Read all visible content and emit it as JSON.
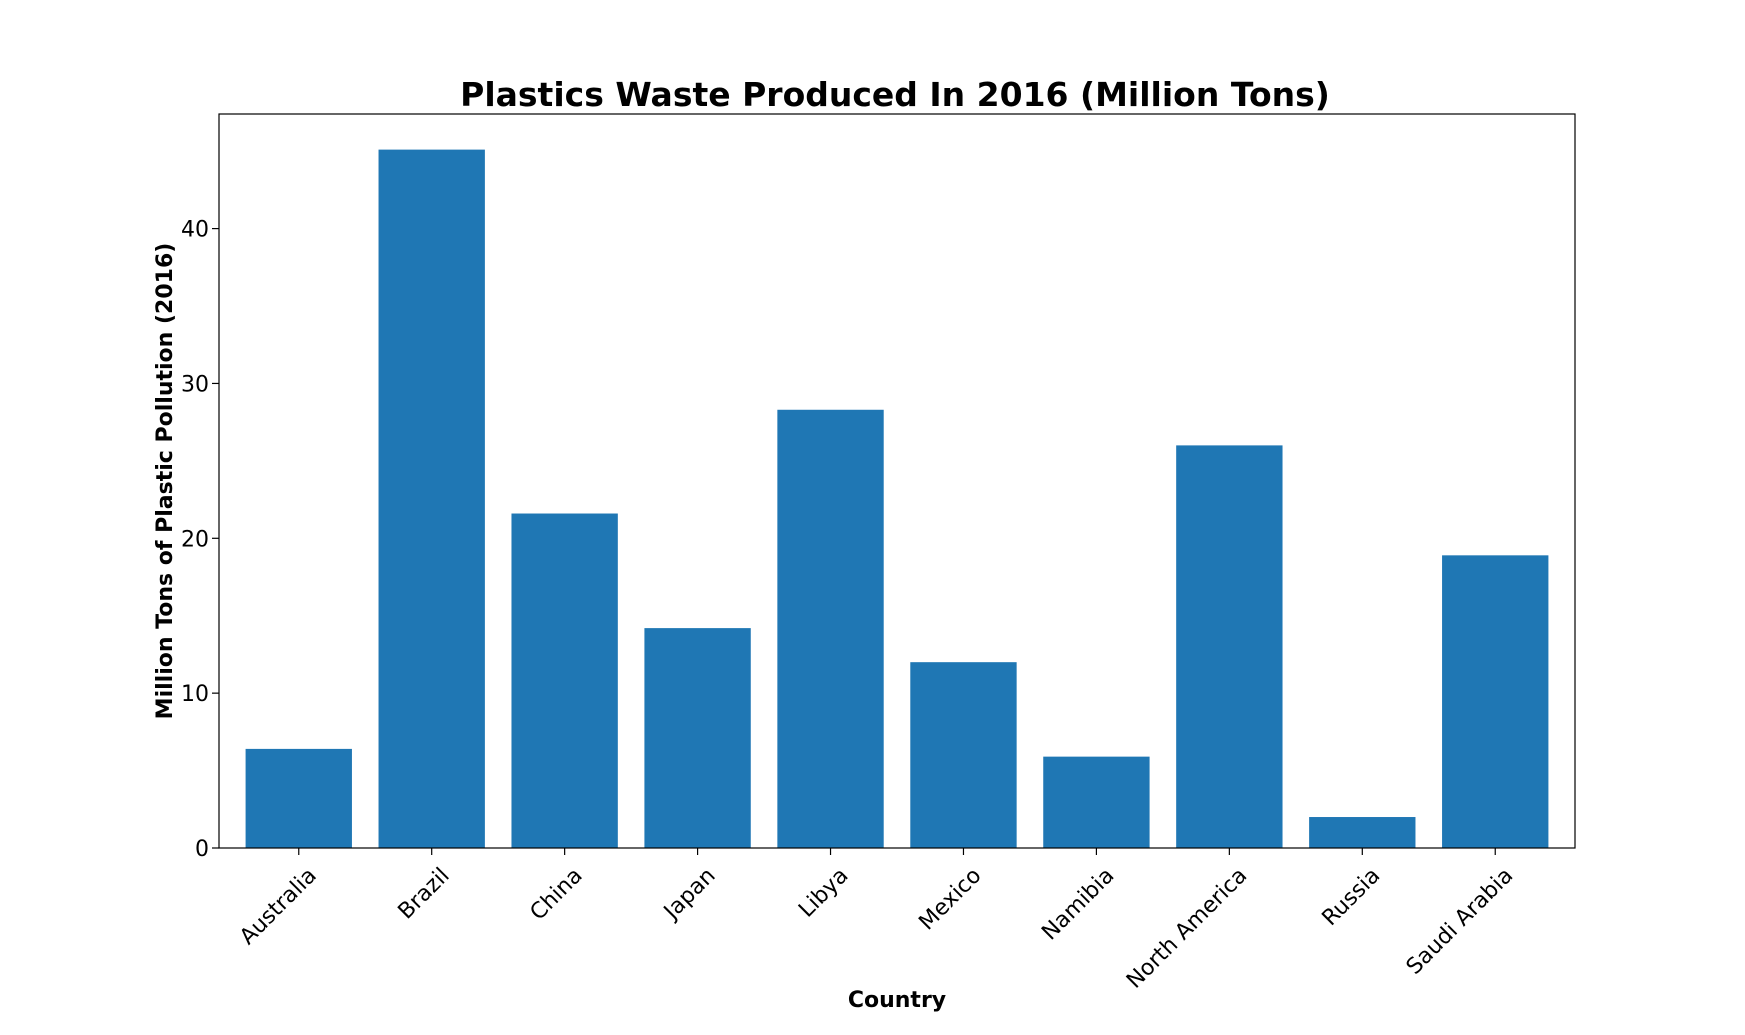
{
  "chart_data": {
    "type": "bar",
    "title": "Plastics Waste Produced In 2016 (Million Tons)",
    "xlabel": "Country",
    "ylabel": "Million Tons of Plastic Pollution (2016)",
    "categories": [
      "Australia",
      "Brazil",
      "China",
      "Japan",
      "Libya",
      "Mexico",
      "Namibia",
      "North America",
      "Russia",
      "Saudi Arabia"
    ],
    "values": [
      6.4,
      45.1,
      21.6,
      14.2,
      28.3,
      12.0,
      5.9,
      26.0,
      2.0,
      18.9
    ],
    "ylim": [
      0,
      47.4
    ],
    "yticks": [
      0,
      10,
      20,
      30,
      40
    ],
    "grid": false,
    "legend": "none",
    "bar_color": "#1f77b4"
  }
}
